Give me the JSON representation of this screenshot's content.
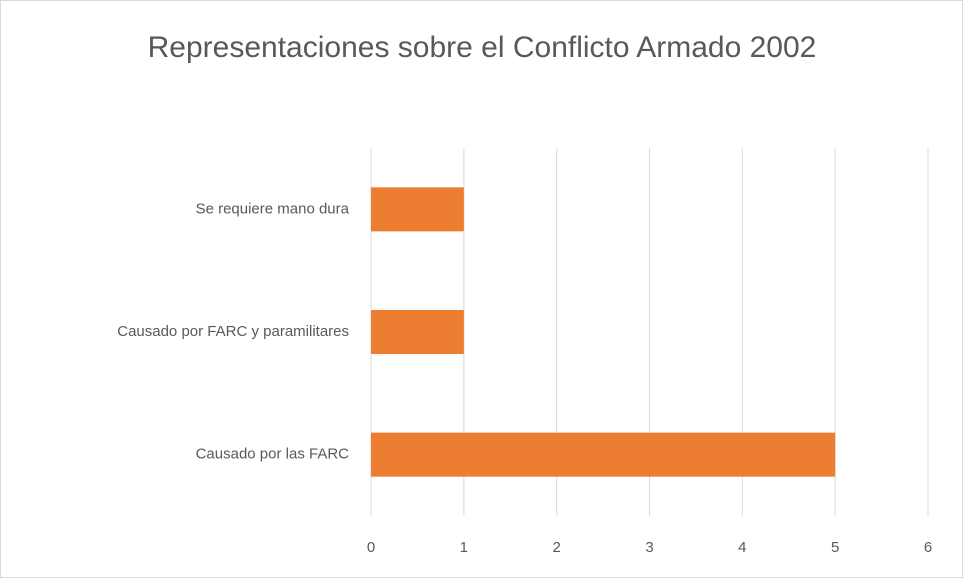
{
  "chart_data": {
    "type": "bar",
    "orientation": "horizontal",
    "title": "Representaciones sobre el Conflicto Armado 2002",
    "categories": [
      "Se requiere mano dura",
      "Causado por FARC y paramilitares",
      "Causado por las FARC"
    ],
    "values": [
      1,
      1,
      5
    ],
    "color": "#ed7d31",
    "xlim": [
      0,
      6
    ],
    "xticks": [
      0,
      1,
      2,
      3,
      4,
      5,
      6
    ],
    "grid": true
  }
}
